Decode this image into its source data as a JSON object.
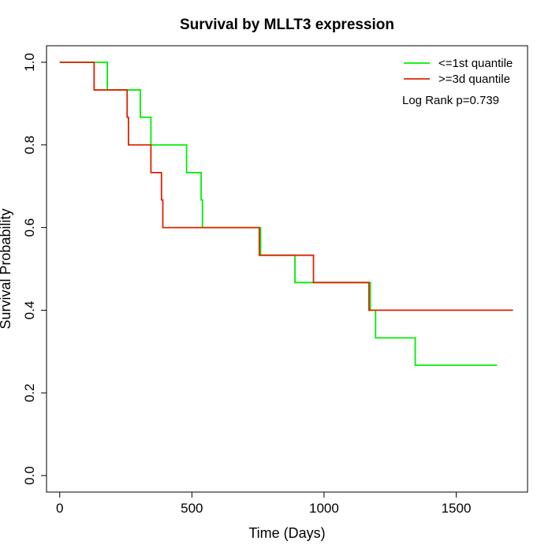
{
  "chart_data": {
    "type": "line",
    "title": "Survival by MLLT3 expression",
    "xlabel": "Time (Days)",
    "ylabel": "Survival Probability",
    "xlim": [
      -50,
      1770
    ],
    "ylim": [
      -0.04,
      1.04
    ],
    "xticks": [
      0,
      500,
      1000,
      1500
    ],
    "yticks": [
      0.0,
      0.2,
      0.4,
      0.6,
      0.8,
      1.0
    ],
    "xtick_labels": [
      "0",
      "500",
      "1000",
      "1500"
    ],
    "ytick_labels": [
      "0.0",
      "0.2",
      "0.4",
      "0.6",
      "0.8",
      "1.0"
    ],
    "grid": false,
    "legend_position": "top-right",
    "annotation": "Log Rank p=0.739",
    "series": [
      {
        "name": "<=1st quantile",
        "color": "#00ee00",
        "step": true,
        "x": [
          0,
          180,
          305,
          345,
          480,
          535,
          540,
          760,
          890,
          960,
          1175,
          1195,
          1345,
          1655
        ],
        "y": [
          1.0,
          0.933,
          0.867,
          0.8,
          0.733,
          0.667,
          0.6,
          0.533,
          0.467,
          0.467,
          0.4,
          0.333,
          0.267,
          0.267
        ]
      },
      {
        "name": ">=3d quantile",
        "color": "#dd2200",
        "step": true,
        "x": [
          0,
          130,
          255,
          260,
          345,
          385,
          390,
          755,
          960,
          1170,
          1715
        ],
        "y": [
          1.0,
          0.933,
          0.867,
          0.8,
          0.733,
          0.667,
          0.6,
          0.533,
          0.467,
          0.4,
          0.4
        ]
      }
    ]
  }
}
